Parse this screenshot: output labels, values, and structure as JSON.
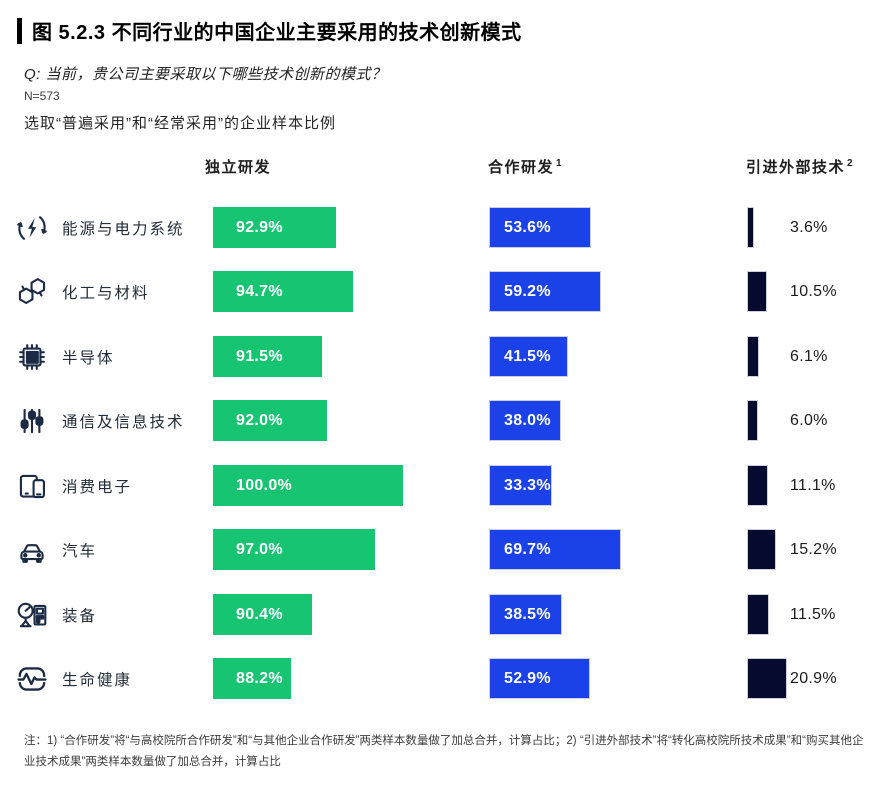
{
  "page": {
    "title": "图 5.2.3 不同行业的中国企业主要采用的技术创新模式",
    "question": "Q: 当前，贵公司主要采取以下哪些技术创新的模式？",
    "sample_size": "N=573",
    "subtitle": "选取“普遍采用”和“经常采用”的企业样本比例",
    "footnote": "注：1) “合作研发”将“与高校院所合作研发”和“与其他企业合作研发”两类样本数量做了加总合并，计算占比；2) “引进外部技术”将“转化高校院所技术成果”和“购买其他企业技术成果”两类样本数量做了加总合并，计算占比"
  },
  "chart_data": {
    "type": "bar",
    "orientation": "horizontal",
    "title": "图 5.2.3 不同行业的中国企业主要采用的技术创新模式",
    "subtitle": "选取“普遍采用”和“经常采用”的企业样本比例",
    "value_unit": "%",
    "grid": false,
    "legend_position": "column-headers-top",
    "categories": [
      "能源与电力系统",
      "化工与材料",
      "半导体",
      "通信及信息技术",
      "消费电子",
      "汽车",
      "装备",
      "生命健康"
    ],
    "category_icons": [
      "energy-cycle-bolt-icon",
      "molecule-hexagons-icon",
      "semiconductor-chip-icon",
      "equalizer-sliders-icon",
      "tablet-phone-icon",
      "car-icon",
      "industrial-machine-icon",
      "heartbeat-monitor-icon"
    ],
    "series": [
      {
        "key": "independent-rd",
        "name": "独立研发",
        "footnote_ref": "",
        "color": "#17C471",
        "label_position": "inside",
        "axis_min": 80,
        "axis_max": 100,
        "values": [
          92.9,
          94.7,
          91.5,
          92.0,
          100.0,
          97.0,
          90.4,
          88.2
        ]
      },
      {
        "key": "cooperative-rd",
        "name": "合作研发",
        "footnote_ref": "1",
        "color": "#1B41E8",
        "label_position": "inside",
        "axis_min": 0,
        "axis_max": 100,
        "values": [
          53.6,
          59.2,
          41.5,
          38.0,
          33.3,
          69.7,
          38.5,
          52.9
        ]
      },
      {
        "key": "external-tech",
        "name": "引进外部技术",
        "footnote_ref": "2",
        "color": "#050A2E",
        "label_position": "outside",
        "axis_min": 0,
        "axis_max": 100,
        "values": [
          3.6,
          10.5,
          6.1,
          6.0,
          11.1,
          15.2,
          11.5,
          20.9
        ]
      }
    ]
  }
}
